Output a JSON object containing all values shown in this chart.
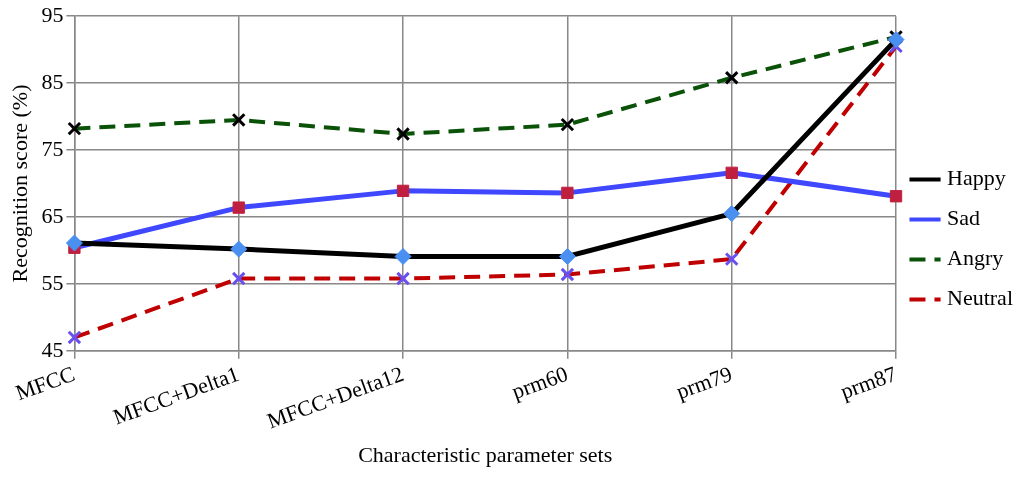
{
  "chart_data": {
    "type": "line",
    "xlabel": "Characteristic parameter sets",
    "ylabel": "Recognition score (%)",
    "categories": [
      "MFCC",
      "MFCC+Delta1",
      "MFCC+Delta12",
      "prm60",
      "prm79",
      "prm87"
    ],
    "series": [
      {
        "name": "Happy",
        "color": "#000000",
        "colors": [
          "#4a90f0",
          "#4a90f0",
          "#4a90f0",
          "#4a90f0",
          "#4a90f0",
          "#4a90f0"
        ],
        "marker": "diamond",
        "line_style": "solid",
        "values": [
          61.1,
          60.2,
          59.1,
          59.1,
          65.5,
          91.5
        ]
      },
      {
        "name": "Sad",
        "color": "#3f48ff",
        "colors": [
          "#c0203f",
          "#c0203f",
          "#c0203f",
          "#c0203f",
          "#c0203f",
          "#c0203f"
        ],
        "marker": "square",
        "line_style": "solid",
        "values": [
          60.4,
          66.4,
          68.9,
          68.6,
          71.6,
          68.1
        ]
      },
      {
        "name": "Angry",
        "color": "#0a5208",
        "colors": [
          "#000000",
          "#000000",
          "#000000",
          "#000000",
          "#000000",
          "#000000"
        ],
        "marker": "cross",
        "line_style": "dashed",
        "values": [
          78.2,
          79.5,
          77.4,
          78.8,
          85.8,
          91.9
        ]
      },
      {
        "name": "Neutral",
        "color": "#c00000",
        "colors": [
          "#6a4ff0",
          "#6a4ff0",
          "#6a4ff0",
          "#6a4ff0",
          "#6a4ff0",
          "#6a4ff0"
        ],
        "marker": "cross",
        "line_style": "dashed",
        "values": [
          47.0,
          55.8,
          55.8,
          56.4,
          58.7,
          90.5
        ]
      }
    ],
    "ylim": [
      45,
      95
    ],
    "yticks": [
      45,
      55,
      65,
      75,
      85,
      95
    ],
    "grid": true,
    "legend": "right"
  }
}
